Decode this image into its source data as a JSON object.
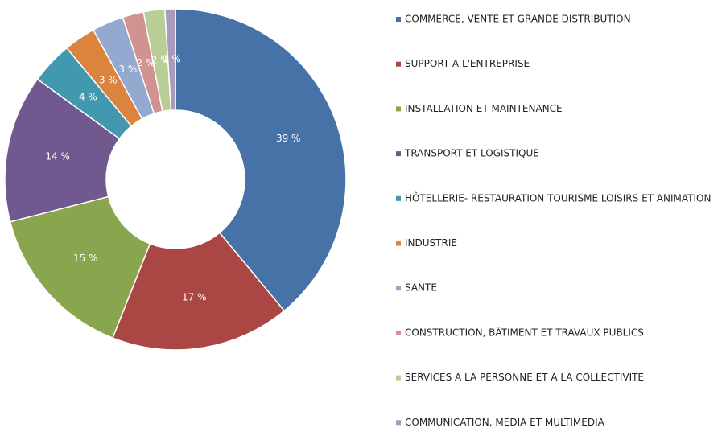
{
  "chart_data": {
    "type": "donut",
    "categories": [
      "COMMERCE, VENTE ET GRANDE DISTRIBUTION",
      "SUPPORT A L'ENTREPRISE",
      "INSTALLATION ET MAINTENANCE",
      "TRANSPORT ET LOGISTIQUE",
      "HÔTELLERIE- RESTAURATION TOURISME LOISIRS ET ANIMATION",
      "INDUSTRIE",
      "SANTE",
      "CONSTRUCTION, BÂTIMENT ET TRAVAUX PUBLICS",
      "SERVICES A LA PERSONNE ET A LA COLLECTIVITE",
      "COMMUNICATION, MEDIA ET MULTIMEDIA"
    ],
    "values": [
      39,
      17,
      15,
      14,
      4,
      3,
      3,
      2,
      2,
      1
    ],
    "value_labels": [
      "39 %",
      "17 %",
      "15 %",
      "14 %",
      "4 %",
      "3 %",
      "3 %",
      "2 %",
      "2 %",
      "1 %"
    ],
    "colors": [
      "#4672a8",
      "#aa4643",
      "#89a54e",
      "#71588f",
      "#4198af",
      "#db843d",
      "#93a9cf",
      "#d19392",
      "#b9cd96",
      "#a99bbd"
    ],
    "legend": "right"
  }
}
